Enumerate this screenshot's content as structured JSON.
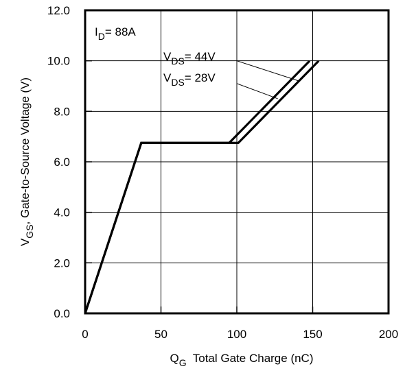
{
  "chart_data": {
    "type": "line",
    "xlabel_main": "Q",
    "xlabel_sub": "G",
    "xlabel_rest": "  Total Gate Charge (nC)",
    "ylabel_main": "V",
    "ylabel_sub": "GS",
    "ylabel_rest": ", Gate-to-Source Voltage (V)",
    "xlim": [
      0,
      200
    ],
    "ylim": [
      0,
      12
    ],
    "x_ticks": [
      0,
      50,
      100,
      150,
      200
    ],
    "x_tick_labels": [
      "0",
      "50",
      "100",
      "150",
      "200"
    ],
    "y_ticks": [
      0,
      2,
      4,
      6,
      8,
      10,
      12
    ],
    "y_tick_labels": [
      "0.0",
      "2.0",
      "4.0",
      "6.0",
      "8.0",
      "10.0",
      "12.0"
    ],
    "grid": true,
    "condition": {
      "main": "I",
      "sub": "D",
      "rest": "= 88A"
    },
    "series": [
      {
        "name_main": "V",
        "name_sub": "DS",
        "name_rest": "= 44V",
        "x": [
          0,
          37,
          101,
          154
        ],
        "y": [
          0,
          6.75,
          6.75,
          10
        ]
      },
      {
        "name_main": "V",
        "name_sub": "DS",
        "name_rest": "= 28V",
        "x": [
          0,
          37,
          95,
          148
        ],
        "y": [
          0,
          6.75,
          6.75,
          10
        ]
      }
    ],
    "leader_lines": [
      {
        "from": [
          100,
          10.0
        ],
        "to": [
          141,
          9.2
        ]
      },
      {
        "from": [
          100,
          9.1
        ],
        "to": [
          127,
          8.5
        ]
      }
    ]
  }
}
